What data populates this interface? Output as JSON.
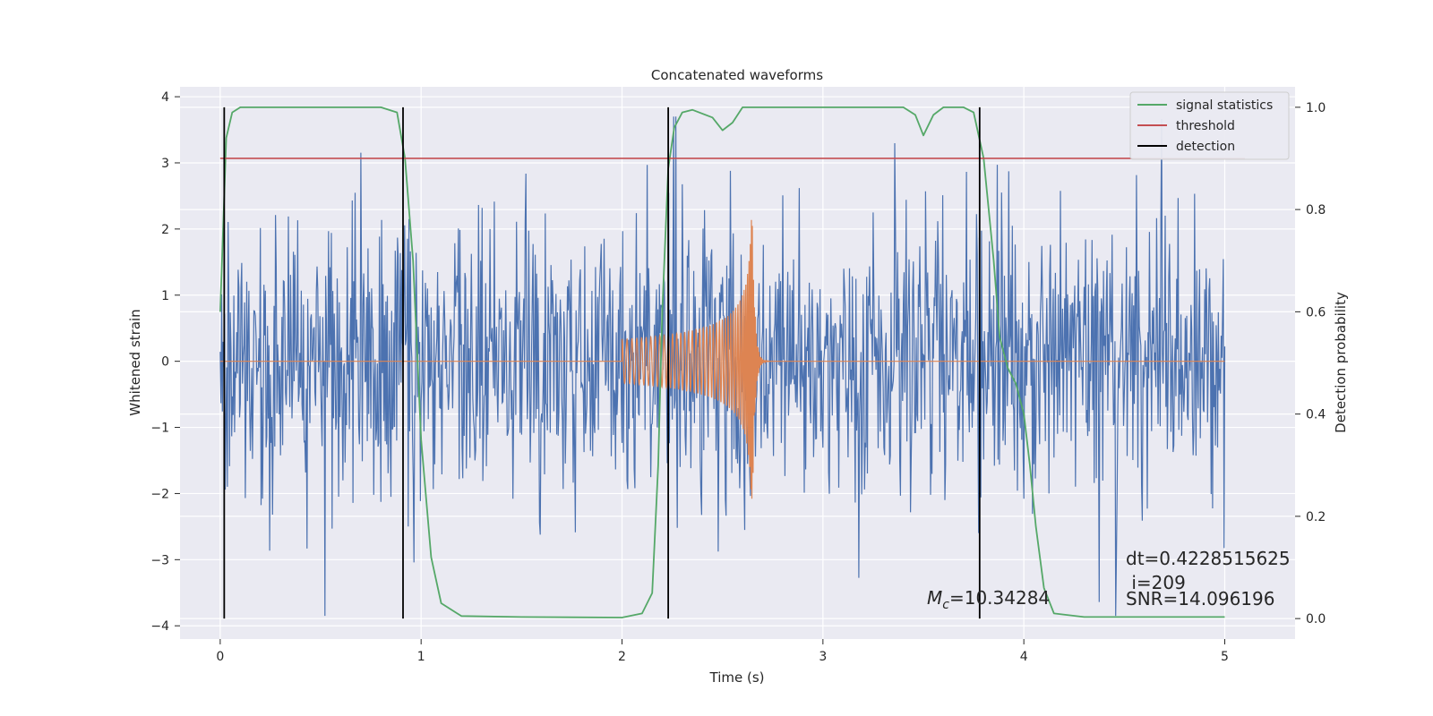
{
  "chart_data": {
    "type": "line",
    "title": "Concatenated waveforms",
    "xlabel": "Time (s)",
    "ylabel": "Whitened strain",
    "y2label": "Detection probability",
    "xlim": [
      -0.2,
      5.35
    ],
    "ylim": [
      -4.2,
      4.15
    ],
    "y2lim": [
      -0.04,
      1.04
    ],
    "xticks": [
      0,
      1,
      2,
      3,
      4,
      5
    ],
    "yticks": [
      -4,
      -3,
      -2,
      -1,
      0,
      1,
      2,
      3,
      4
    ],
    "y2ticks": [
      0.0,
      0.2,
      0.4,
      0.6,
      0.8,
      1.0
    ],
    "xtick_labels": [
      "0",
      "1",
      "2",
      "3",
      "4",
      "5"
    ],
    "ytick_labels": [
      "−4",
      "−3",
      "−2",
      "−1",
      "0",
      "1",
      "2",
      "3",
      "4"
    ],
    "y2tick_labels": [
      "0.0",
      "0.2",
      "0.4",
      "0.6",
      "0.8",
      "1.0"
    ],
    "grid": true,
    "legend_position": "top-right",
    "series": [
      {
        "name": "whitened strain (noise)",
        "axis": "left",
        "color": "#4c72b0",
        "x_range": [
          0,
          5
        ],
        "amplitude_typical": 1.1,
        "min": -3.85,
        "max": 3.7
      },
      {
        "name": "injected signal",
        "axis": "left",
        "color": "#dd8452",
        "start": 2.0,
        "merger": 2.65,
        "end": 2.75,
        "peak_amplitude": 2.15
      },
      {
        "name": "signal statistics",
        "axis": "right",
        "color": "#55a868",
        "x": [
          0.0,
          0.03,
          0.06,
          0.1,
          0.3,
          0.8,
          0.88,
          0.92,
          0.96,
          1.0,
          1.05,
          1.1,
          1.2,
          1.5,
          2.0,
          2.1,
          2.15,
          2.18,
          2.2,
          2.23,
          2.26,
          2.3,
          2.35,
          2.45,
          2.5,
          2.55,
          2.6,
          2.65,
          2.7,
          3.0,
          3.4,
          3.46,
          3.5,
          3.55,
          3.6,
          3.7,
          3.75,
          3.8,
          3.85,
          3.88,
          3.92,
          3.96,
          4.0,
          4.03,
          4.06,
          4.1,
          4.15,
          4.3,
          5.0
        ],
        "values": [
          0.6,
          0.94,
          0.99,
          1.0,
          1.0,
          1.0,
          0.99,
          0.9,
          0.7,
          0.35,
          0.12,
          0.03,
          0.005,
          0.003,
          0.002,
          0.01,
          0.05,
          0.3,
          0.6,
          0.88,
          0.96,
          0.99,
          0.995,
          0.98,
          0.955,
          0.97,
          1.0,
          1.0,
          1.0,
          1.0,
          1.0,
          0.985,
          0.945,
          0.985,
          1.0,
          1.0,
          0.99,
          0.9,
          0.7,
          0.55,
          0.49,
          0.46,
          0.4,
          0.3,
          0.18,
          0.06,
          0.01,
          0.003,
          0.003
        ]
      },
      {
        "name": "threshold",
        "axis": "right",
        "color": "#c44e52",
        "x": [
          0.0,
          5.1
        ],
        "values": [
          0.9,
          0.9
        ]
      },
      {
        "name": "detection",
        "axis": "right",
        "color": "#000000",
        "x": [
          0.02,
          0.91,
          2.23,
          3.78
        ],
        "y_range": [
          0.0,
          1.0
        ]
      }
    ],
    "legend": [
      "signal statistics",
      "threshold",
      "detection"
    ],
    "annotations": {
      "mc_symbol": "M",
      "mc_subscript": "c",
      "mc_value": "=10.34284",
      "dt": "dt=0.4228515625",
      "i": " i=209",
      "snr": "SNR=14.096196"
    }
  }
}
